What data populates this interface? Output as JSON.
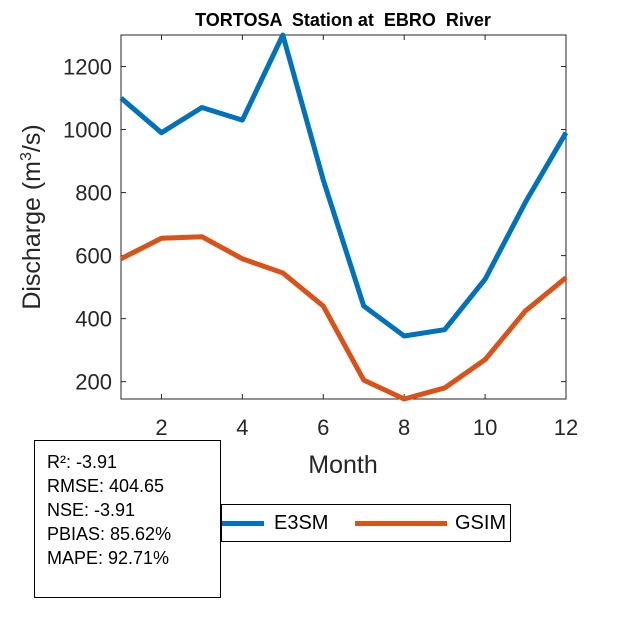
{
  "chart_data": {
    "type": "line",
    "title": "TORTOSA  Station at  EBRO  River",
    "xlabel": "Month",
    "ylabel": "Discharge (m",
    "ylabel_sup": "3",
    "ylabel_tail": "/s)",
    "xlim": [
      1,
      12
    ],
    "ylim": [
      145,
      1300
    ],
    "xticks": [
      2,
      4,
      6,
      8,
      10,
      12
    ],
    "yticks": [
      200,
      400,
      600,
      800,
      1000,
      1200
    ],
    "x": [
      1,
      2,
      3,
      4,
      5,
      6,
      7,
      8,
      9,
      10,
      11,
      12
    ],
    "series": [
      {
        "name": "E3SM",
        "color": "#0072BD",
        "values": [
          1100,
          990,
          1070,
          1030,
          1300,
          840,
          440,
          345,
          365,
          525,
          770,
          990
        ]
      },
      {
        "name": "GSIM",
        "color": "#D95319",
        "values": [
          590,
          655,
          660,
          590,
          545,
          440,
          205,
          145,
          180,
          270,
          425,
          530
        ]
      }
    ],
    "legend_position": "bottom-outside"
  },
  "stats": {
    "r2": "R²: -3.91",
    "rmse": "RMSE: 404.65",
    "nse": "NSE: -3.91",
    "pbias": "PBIAS: 85.62%",
    "mape": "MAPE: 92.71%"
  }
}
